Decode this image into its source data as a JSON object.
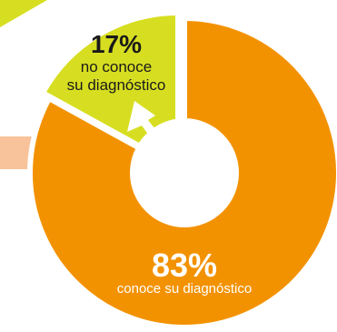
{
  "chart_data": {
    "type": "pie",
    "variant": "donut",
    "slices": [
      {
        "value": 83,
        "percent_label": "83%",
        "caption_lines": [
          "conoce su diagnóstico"
        ],
        "color": "#F39200"
      },
      {
        "value": 17,
        "percent_label": "17%",
        "caption_lines": [
          "no conoce",
          "su diagnóstico"
        ],
        "color": "#D7DE21"
      }
    ],
    "accent_colors": {
      "arrow": "#FFFFFF",
      "decor_bar": "#F8C39A",
      "decor_corner": "#D7DE21",
      "label_light": "#FFFFFF",
      "label_dark": "#1A1A1A"
    }
  }
}
